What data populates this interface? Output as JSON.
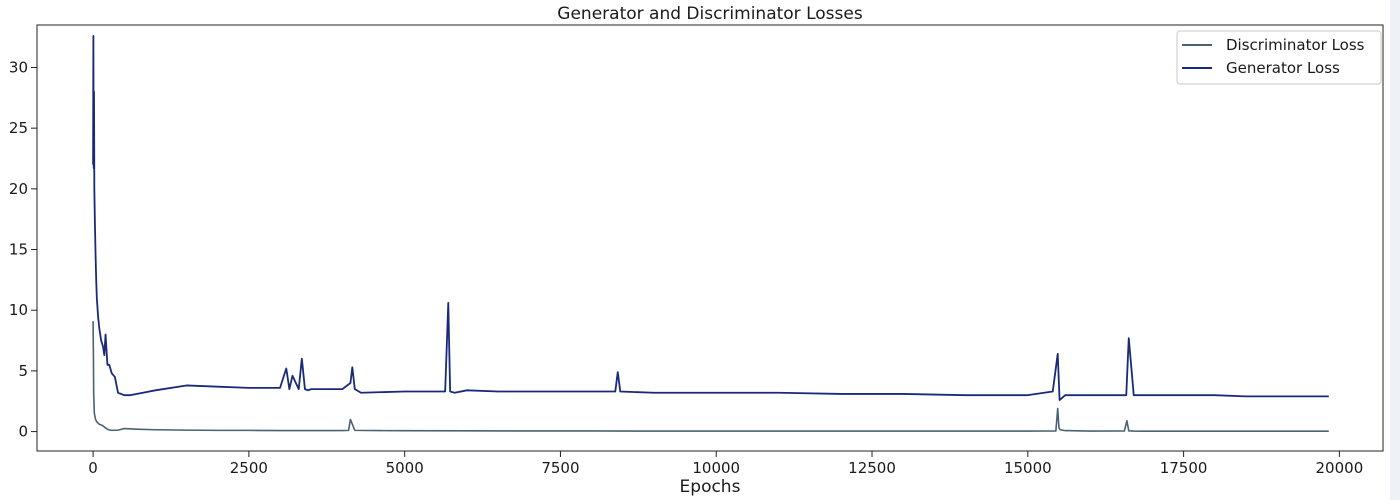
{
  "chart_data": {
    "type": "line",
    "title": "Generator and Discriminator Losses",
    "xlabel": "Epochs",
    "ylabel": "",
    "xlim": [
      -900,
      20700
    ],
    "ylim": [
      -1.6,
      33.5
    ],
    "x_ticks": [
      0,
      2500,
      5000,
      7500,
      10000,
      12500,
      15000,
      17500,
      20000
    ],
    "x_tick_labels": [
      "0",
      "2500",
      "5000",
      "7500",
      "10000",
      "12500",
      "15000",
      "17500",
      "20000"
    ],
    "y_ticks": [
      0,
      5,
      10,
      15,
      20,
      25,
      30
    ],
    "y_tick_labels": [
      "0",
      "5",
      "10",
      "15",
      "20",
      "25",
      "30"
    ],
    "grid": false,
    "legend_position": "top-right",
    "series": [
      {
        "name": "Discriminator Loss",
        "color": "#4a6272",
        "x": [
          0,
          5,
          10,
          20,
          40,
          60,
          100,
          150,
          200,
          250,
          300,
          400,
          500,
          700,
          1000,
          1500,
          2000,
          2500,
          3000,
          3500,
          4000,
          4100,
          4130,
          4200,
          4600,
          5000,
          6000,
          7000,
          8000,
          9000,
          10000,
          11000,
          12000,
          13000,
          14000,
          15000,
          15450,
          15480,
          15500,
          15520,
          15600,
          16000,
          16550,
          16590,
          16620,
          16700,
          17000,
          18000,
          19000,
          19830
        ],
        "y": [
          9.1,
          6.5,
          3.0,
          1.5,
          1.0,
          0.8,
          0.6,
          0.5,
          0.3,
          0.15,
          0.1,
          0.12,
          0.25,
          0.2,
          0.15,
          0.12,
          0.1,
          0.1,
          0.08,
          0.08,
          0.08,
          0.1,
          1.0,
          0.1,
          0.08,
          0.07,
          0.06,
          0.05,
          0.05,
          0.04,
          0.04,
          0.04,
          0.04,
          0.04,
          0.04,
          0.04,
          0.05,
          1.9,
          0.3,
          0.15,
          0.08,
          0.04,
          0.05,
          0.9,
          0.06,
          0.04,
          0.03,
          0.03,
          0.03,
          0.03
        ]
      },
      {
        "name": "Generator Loss",
        "color": "#1a2a7a",
        "x": [
          0,
          5,
          10,
          15,
          20,
          30,
          40,
          50,
          60,
          80,
          100,
          130,
          160,
          180,
          200,
          230,
          260,
          300,
          350,
          400,
          500,
          600,
          800,
          1000,
          1500,
          2000,
          2500,
          3000,
          3100,
          3150,
          3200,
          3300,
          3350,
          3400,
          3450,
          3500,
          4000,
          4130,
          4160,
          4200,
          4300,
          5000,
          5650,
          5700,
          5730,
          5800,
          6000,
          6500,
          7000,
          7500,
          8000,
          8380,
          8420,
          8460,
          9000,
          10000,
          11000,
          12000,
          13000,
          14000,
          15000,
          15400,
          15480,
          15510,
          15600,
          16000,
          16500,
          16580,
          16620,
          16700,
          17000,
          17500,
          18000,
          18500,
          19000,
          19830
        ],
        "y": [
          22.0,
          32.6,
          21.7,
          28.0,
          20.0,
          17.0,
          14.5,
          12.5,
          11.0,
          9.5,
          8.5,
          7.5,
          7.0,
          6.3,
          8.0,
          5.5,
          5.5,
          4.8,
          4.5,
          3.2,
          3.0,
          3.0,
          3.2,
          3.4,
          3.8,
          3.7,
          3.6,
          3.6,
          5.2,
          3.5,
          4.6,
          3.5,
          6.0,
          3.5,
          3.4,
          3.5,
          3.5,
          4.0,
          5.3,
          3.5,
          3.2,
          3.3,
          3.3,
          10.6,
          3.3,
          3.2,
          3.4,
          3.3,
          3.3,
          3.3,
          3.3,
          3.3,
          4.9,
          3.3,
          3.2,
          3.2,
          3.2,
          3.1,
          3.1,
          3.0,
          3.0,
          3.3,
          6.4,
          2.6,
          3.0,
          3.0,
          3.0,
          3.0,
          7.7,
          3.0,
          3.0,
          3.0,
          3.0,
          2.9,
          2.9,
          2.9
        ]
      }
    ]
  }
}
